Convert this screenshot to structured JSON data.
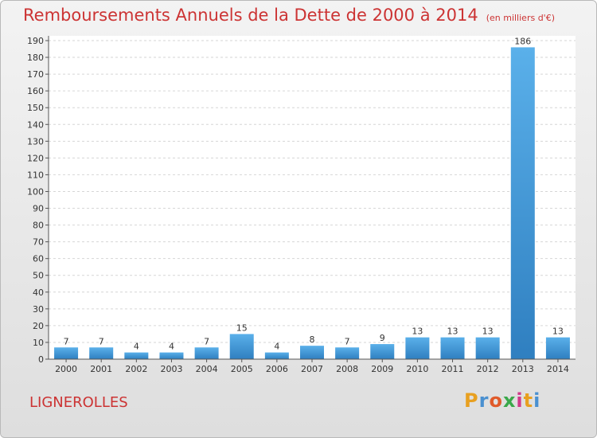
{
  "title": "Remboursements Annuels de la Dette de 2000 à 2014",
  "subtitle": "(en milliers d'€)",
  "commune": "LIGNEROLLES",
  "logo": {
    "text": [
      "P",
      "r",
      "o",
      "x",
      "i",
      "t",
      "i"
    ],
    "colors": [
      "#e8a020",
      "#4a90d0",
      "#e05a2a",
      "#3aa84a",
      "#d03a8a",
      "#e8a020",
      "#4a90d0"
    ]
  },
  "chart_data": {
    "type": "bar",
    "categories": [
      "2000",
      "2001",
      "2002",
      "2003",
      "2004",
      "2005",
      "2006",
      "2007",
      "2008",
      "2009",
      "2010",
      "2011",
      "2012",
      "2013",
      "2014"
    ],
    "values": [
      7,
      7,
      4,
      4,
      7,
      15,
      4,
      8,
      7,
      9,
      13,
      13,
      13,
      186,
      13
    ],
    "ylim": [
      0,
      190
    ],
    "yticks": [
      0,
      10,
      20,
      30,
      40,
      50,
      60,
      70,
      80,
      90,
      100,
      110,
      120,
      130,
      140,
      150,
      160,
      170,
      180,
      190
    ],
    "grid": true,
    "bar_color_top": "#5ab0ea",
    "bar_color_bottom": "#2f7fc0"
  }
}
